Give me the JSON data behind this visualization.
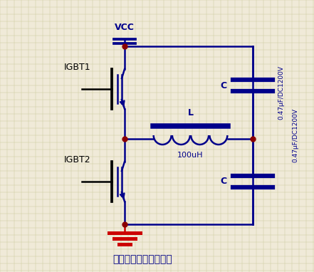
{
  "background_color": "#f0ead8",
  "grid_color": "#c8c896",
  "wire_color": "#00008b",
  "node_color": "#8b0000",
  "ground_color": "#cc0000",
  "label_color": "#00008b",
  "black_color": "#000000",
  "title": "电磁炉半桥主电路结构",
  "title_color": "#00008b",
  "vcc_label": "VCC",
  "igbt1_label": "IGBT1",
  "igbt2_label": "IGBT2",
  "inductor_label": "L",
  "inductor_value": "100uH",
  "cap1_label": "C",
  "cap2_label": "C",
  "cap_value1": "0.47μF/DC1200V",
  "cap_value2": "0.47μF/DC1200V",
  "figsize": [
    4.41,
    3.82
  ],
  "dpi": 100
}
